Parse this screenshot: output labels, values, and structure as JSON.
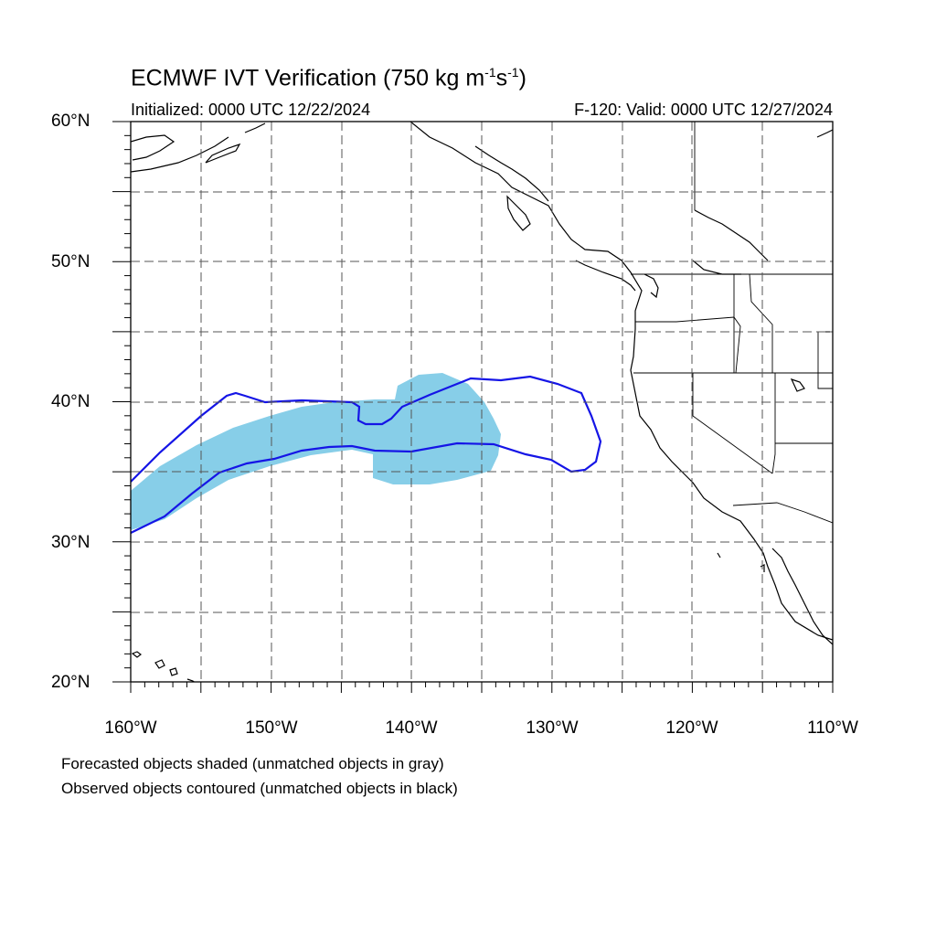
{
  "title_main": "ECMWF IVT Verification (750 kg m",
  "title_exp1": "-1",
  "title_mid": "s",
  "title_exp2": "-1",
  "title_end": ")",
  "subtitle_left": "Initialized: 0000 UTC 12/22/2024",
  "subtitle_right": "F-120: Valid: 0000 UTC 12/27/2024",
  "lat_labels": [
    "60°N",
    "50°N",
    "40°N",
    "30°N",
    "20°N"
  ],
  "lon_labels": [
    "160°W",
    "150°W",
    "140°W",
    "130°W",
    "120°W",
    "110°W"
  ],
  "notes": [
    "Forecasted objects shaded (unmatched objects in gray)",
    "Observed objects contoured (unmatched objects in black)"
  ],
  "colors": {
    "forecast_fill": "#87CEE8",
    "observed_contour": "#1515E6",
    "coastline": "#000000",
    "grid": "#444444"
  }
}
